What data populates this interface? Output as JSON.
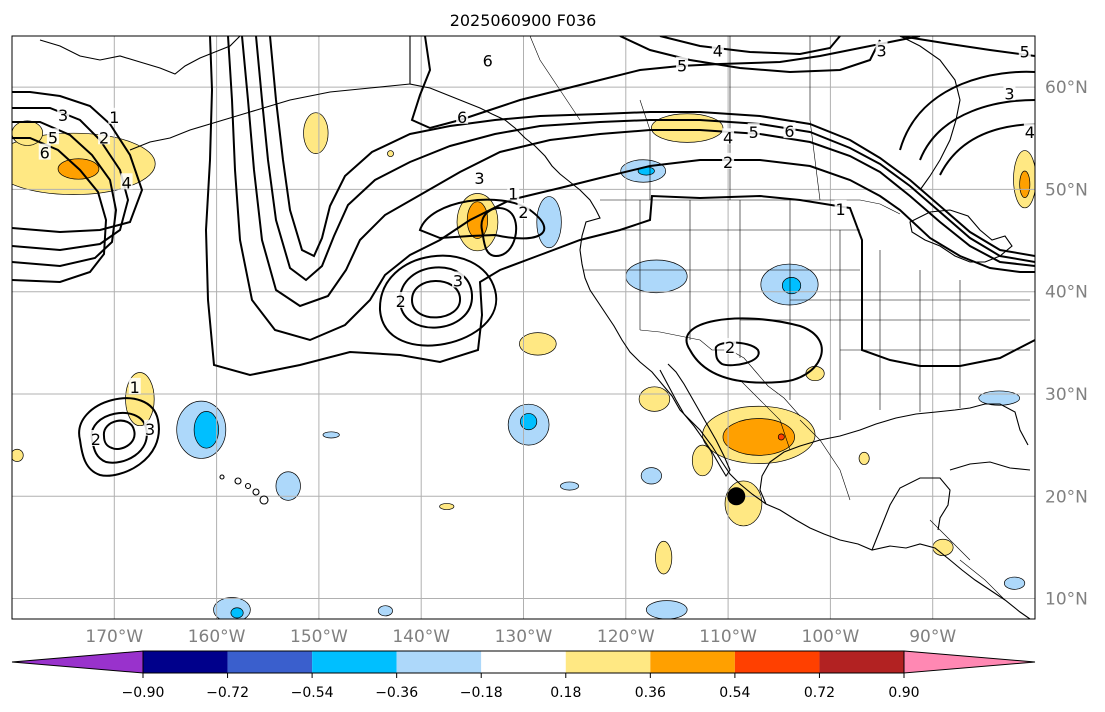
{
  "title": "2025060900 F036",
  "map": {
    "lon_range": [
      -180,
      -80
    ],
    "lat_range": [
      8,
      65
    ],
    "lat_gridlines": [
      10,
      20,
      30,
      40,
      50,
      60
    ],
    "lon_gridlines": [
      -170,
      -160,
      -150,
      -140,
      -130,
      -120,
      -110,
      -100,
      -90
    ],
    "lat_labels": [
      "10°N",
      "20°N",
      "30°N",
      "40°N",
      "50°N",
      "60°N"
    ],
    "lon_labels": [
      "170°W",
      "160°W",
      "150°W",
      "140°W",
      "130°W",
      "120°W",
      "110°W",
      "100°W",
      "90°W"
    ],
    "marker": {
      "lon": -109.2,
      "lat": 20.0,
      "color": "#000000"
    }
  },
  "contours": {
    "color": "#000000",
    "labels": [
      {
        "text": "6",
        "lon": -133.5,
        "lat": 62.5
      },
      {
        "text": "6",
        "lon": -136,
        "lat": 57.0
      },
      {
        "text": "5",
        "lon": -114.5,
        "lat": 62.0
      },
      {
        "text": "4",
        "lon": -111.0,
        "lat": 63.5
      },
      {
        "text": "3",
        "lon": -95.0,
        "lat": 63.5
      },
      {
        "text": "3",
        "lon": -82.5,
        "lat": 59.3
      },
      {
        "text": "4",
        "lon": -80.5,
        "lat": 55.5
      },
      {
        "text": "5",
        "lon": -81,
        "lat": 63.4
      },
      {
        "text": "3",
        "lon": -175.0,
        "lat": 57.2
      },
      {
        "text": "5",
        "lon": -176.0,
        "lat": 55.0
      },
      {
        "text": "6",
        "lon": -176.8,
        "lat": 53.5
      },
      {
        "text": "1",
        "lon": -170.0,
        "lat": 57.0
      },
      {
        "text": "2",
        "lon": -171.0,
        "lat": 55.0
      },
      {
        "text": "4",
        "lon": -168.8,
        "lat": 50.6
      },
      {
        "text": "3",
        "lon": -134.3,
        "lat": 51.0
      },
      {
        "text": "1",
        "lon": -131.0,
        "lat": 49.5
      },
      {
        "text": "2",
        "lon": -130.0,
        "lat": 47.7
      },
      {
        "text": "3",
        "lon": -136.4,
        "lat": 41.0
      },
      {
        "text": "2",
        "lon": -142.0,
        "lat": 39.0
      },
      {
        "text": "4",
        "lon": -110.0,
        "lat": 55.0
      },
      {
        "text": "5",
        "lon": -107.5,
        "lat": 55.5
      },
      {
        "text": "6",
        "lon": -104.0,
        "lat": 55.6
      },
      {
        "text": "2",
        "lon": -110.0,
        "lat": 52.6
      },
      {
        "text": "1",
        "lon": -99.0,
        "lat": 48.0
      },
      {
        "text": "2",
        "lon": -109.8,
        "lat": 34.5
      },
      {
        "text": "1",
        "lon": -168.0,
        "lat": 30.6
      },
      {
        "text": "3",
        "lon": -166.5,
        "lat": 26.5
      },
      {
        "text": "2",
        "lon": -171.8,
        "lat": 25.5
      }
    ]
  },
  "colorbar": {
    "colors": [
      "#9932cc",
      "#00008b",
      "#3a5fcd",
      "#00bfff",
      "#add8fa",
      "#ffffff",
      "#ffe883",
      "#ffa000",
      "#ff4000",
      "#b22222",
      "#ff88b3"
    ],
    "ticks": [
      "−0.90",
      "−0.72",
      "−0.54",
      "−0.36",
      "−0.18",
      "0.18",
      "0.36",
      "0.54",
      "0.72",
      "0.90"
    ],
    "extend": "both"
  },
  "anomalies": [
    {
      "lon": -174.0,
      "lat": 52.5,
      "rx": 8,
      "ry": 3,
      "color": "#ffe883",
      "level": 0.18
    },
    {
      "lon": -173.5,
      "lat": 52.0,
      "rx": 2,
      "ry": 1,
      "color": "#ffa000",
      "level": 0.36
    },
    {
      "lon": -178.5,
      "lat": 55.5,
      "rx": 1.5,
      "ry": 1.2,
      "color": "#ffe883",
      "level": 0.18
    },
    {
      "lon": -150.3,
      "lat": 55.5,
      "rx": 1.2,
      "ry": 2.0,
      "color": "#ffe883",
      "level": 0.18
    },
    {
      "lon": -134.5,
      "lat": 46.8,
      "rx": 2.0,
      "ry": 2.8,
      "color": "#ffe883",
      "level": 0.18
    },
    {
      "lon": -134.5,
      "lat": 47.0,
      "rx": 1.0,
      "ry": 1.8,
      "color": "#ffa000",
      "level": 0.36
    },
    {
      "lon": -127.5,
      "lat": 46.8,
      "rx": 1.2,
      "ry": 2.5,
      "color": "#add8fa",
      "level": -0.18
    },
    {
      "lon": -118.3,
      "lat": 51.8,
      "rx": 2.2,
      "ry": 1.1,
      "color": "#add8fa",
      "level": -0.18
    },
    {
      "lon": -118.0,
      "lat": 51.8,
      "rx": 0.8,
      "ry": 0.4,
      "color": "#00bfff",
      "level": -0.36
    },
    {
      "lon": -114.0,
      "lat": 56.0,
      "rx": 3.5,
      "ry": 1.4,
      "color": "#ffe883",
      "level": 0.18
    },
    {
      "lon": -117.0,
      "lat": 41.5,
      "rx": 3.0,
      "ry": 1.6,
      "color": "#add8fa",
      "level": -0.18
    },
    {
      "lon": -104.0,
      "lat": 40.7,
      "rx": 2.8,
      "ry": 2.0,
      "color": "#add8fa",
      "level": -0.18
    },
    {
      "lon": -103.8,
      "lat": 40.6,
      "rx": 0.9,
      "ry": 0.8,
      "color": "#00bfff",
      "level": -0.36
    },
    {
      "lon": -81.0,
      "lat": 51.0,
      "rx": 1.1,
      "ry": 2.8,
      "color": "#ffe883",
      "level": 0.18
    },
    {
      "lon": -81.0,
      "lat": 50.5,
      "rx": 0.5,
      "ry": 1.3,
      "color": "#ffa000",
      "level": 0.36
    },
    {
      "lon": -167.5,
      "lat": 29.5,
      "rx": 1.4,
      "ry": 2.6,
      "color": "#ffe883",
      "level": 0.18
    },
    {
      "lon": -161.5,
      "lat": 26.5,
      "rx": 2.4,
      "ry": 2.8,
      "color": "#add8fa",
      "level": -0.18
    },
    {
      "lon": -161.0,
      "lat": 26.5,
      "rx": 1.2,
      "ry": 1.8,
      "color": "#00bfff",
      "level": -0.36
    },
    {
      "lon": -128.6,
      "lat": 34.9,
      "rx": 1.8,
      "ry": 1.1,
      "color": "#ffe883",
      "level": 0.18
    },
    {
      "lon": -129.5,
      "lat": 27.0,
      "rx": 2.0,
      "ry": 2.0,
      "color": "#add8fa",
      "level": -0.18
    },
    {
      "lon": -129.5,
      "lat": 27.3,
      "rx": 0.8,
      "ry": 0.8,
      "color": "#00bfff",
      "level": -0.36
    },
    {
      "lon": -117.2,
      "lat": 29.5,
      "rx": 1.5,
      "ry": 1.2,
      "color": "#ffe883",
      "level": 0.18
    },
    {
      "lon": -107.0,
      "lat": 26.0,
      "rx": 5.5,
      "ry": 2.8,
      "color": "#ffe883",
      "level": 0.18
    },
    {
      "lon": -107.0,
      "lat": 25.8,
      "rx": 3.5,
      "ry": 1.8,
      "color": "#ffa000",
      "level": 0.36
    },
    {
      "lon": -104.8,
      "lat": 25.8,
      "rx": 0.3,
      "ry": 0.3,
      "color": "#ff4000",
      "level": 0.54
    },
    {
      "lon": -112.5,
      "lat": 23.5,
      "rx": 1.0,
      "ry": 1.5,
      "color": "#ffe883",
      "level": 0.18
    },
    {
      "lon": -108.5,
      "lat": 19.3,
      "rx": 1.8,
      "ry": 2.2,
      "color": "#ffe883",
      "level": 0.18
    },
    {
      "lon": -117.5,
      "lat": 22.0,
      "rx": 1.0,
      "ry": 0.8,
      "color": "#add8fa",
      "level": -0.18
    },
    {
      "lon": -101.5,
      "lat": 32.0,
      "rx": 0.9,
      "ry": 0.7,
      "color": "#ffe883",
      "level": 0.18
    },
    {
      "lon": -153.0,
      "lat": 21.0,
      "rx": 1.2,
      "ry": 1.4,
      "color": "#add8fa",
      "level": -0.18
    },
    {
      "lon": -116.3,
      "lat": 14.0,
      "rx": 0.8,
      "ry": 1.6,
      "color": "#ffe883",
      "level": 0.18
    },
    {
      "lon": -116.0,
      "lat": 8.9,
      "rx": 2.0,
      "ry": 0.9,
      "color": "#add8fa",
      "level": -0.18
    },
    {
      "lon": -158.5,
      "lat": 8.9,
      "rx": 1.8,
      "ry": 1.2,
      "color": "#add8fa",
      "level": -0.18
    },
    {
      "lon": -158.0,
      "lat": 8.6,
      "rx": 0.6,
      "ry": 0.5,
      "color": "#00bfff",
      "level": -0.36
    },
    {
      "lon": -179.5,
      "lat": 24.0,
      "rx": 0.6,
      "ry": 0.6,
      "color": "#ffe883",
      "level": 0.18
    },
    {
      "lon": -125.5,
      "lat": 21.0,
      "rx": 0.9,
      "ry": 0.4,
      "color": "#add8fa",
      "level": -0.18
    },
    {
      "lon": -89.0,
      "lat": 15.0,
      "rx": 1.0,
      "ry": 0.8,
      "color": "#ffe883",
      "level": 0.18
    },
    {
      "lon": -83.5,
      "lat": 29.6,
      "rx": 2.0,
      "ry": 0.7,
      "color": "#add8fa",
      "level": -0.18
    },
    {
      "lon": -82.0,
      "lat": 11.5,
      "rx": 1.0,
      "ry": 0.6,
      "color": "#add8fa",
      "level": -0.18
    },
    {
      "lon": -148.8,
      "lat": 26.0,
      "rx": 0.8,
      "ry": 0.3,
      "color": "#add8fa",
      "level": -0.18
    },
    {
      "lon": -137.5,
      "lat": 19.0,
      "rx": 0.7,
      "ry": 0.3,
      "color": "#ffe883",
      "level": 0.18
    },
    {
      "lon": -96.7,
      "lat": 23.7,
      "rx": 0.5,
      "ry": 0.6,
      "color": "#ffe883",
      "level": 0.18
    },
    {
      "lon": -143.0,
      "lat": 53.5,
      "rx": 0.3,
      "ry": 0.3,
      "color": "#ffe883",
      "level": 0.18
    },
    {
      "lon": -143.5,
      "lat": 8.8,
      "rx": 0.7,
      "ry": 0.5,
      "color": "#add8fa",
      "level": -0.18
    }
  ]
}
